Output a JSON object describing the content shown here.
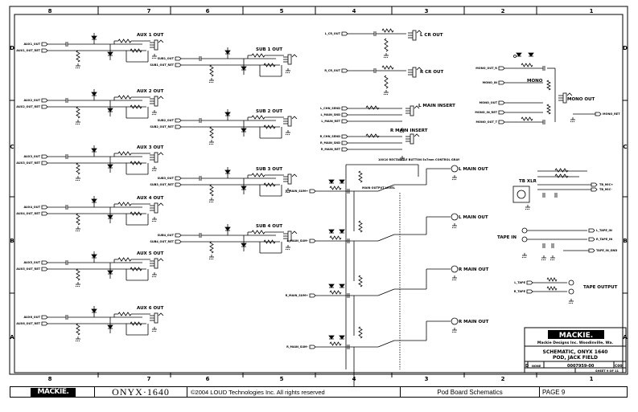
{
  "frame": {
    "columns": [
      "8",
      "7",
      "6",
      "5",
      "4",
      "3",
      "2",
      "1"
    ],
    "rows": [
      "D",
      "C",
      "B",
      "A"
    ]
  },
  "blocks": {
    "aux": [
      {
        "label": "AUX 1 OUT",
        "in": "AUX1_OUT",
        "ret": "AUX1_OUT_RET"
      },
      {
        "label": "AUX 2 OUT",
        "in": "AUX2_OUT",
        "ret": "AUX2_OUT_RET"
      },
      {
        "label": "AUX 3 OUT",
        "in": "AUX3_OUT",
        "ret": "AUX3_OUT_RET"
      },
      {
        "label": "AUX 4 OUT",
        "in": "AUX4_OUT",
        "ret": "AUX4_OUT_RET"
      },
      {
        "label": "AUX 5 OUT",
        "in": "AUX5_OUT",
        "ret": "AUX5_OUT_RET"
      },
      {
        "label": "AUX 6 OUT",
        "in": "AUX6_OUT",
        "ret": "AUX6_OUT_RET"
      }
    ],
    "sub": [
      {
        "label": "SUB 1 OUT",
        "in": "SUB1_OUT",
        "ret": "SUB1_OUT_RET"
      },
      {
        "label": "SUB 2 OUT",
        "in": "SUB2_OUT",
        "ret": "SUB2_OUT_RET"
      },
      {
        "label": "SUB 3 OUT",
        "in": "SUB3_OUT",
        "ret": "SUB3_OUT_RET"
      },
      {
        "label": "SUB 4 OUT",
        "in": "SUB4_OUT",
        "ret": "SUB4_OUT_RET"
      }
    ],
    "cr": [
      {
        "label": "L CR OUT",
        "in": "L_CR_OUT"
      },
      {
        "label": "R CR OUT",
        "in": "R_CR_OUT"
      }
    ],
    "insert": [
      {
        "label": "L MAIN INSERT",
        "nets": [
          "L_CHN_SEND",
          "L_MAIN_SND",
          "L_MAIN_RET"
        ]
      },
      {
        "label": "R MAIN INSERT",
        "nets": [
          "R_CHN_SEND",
          "R_MAIN_SND",
          "R_MAIN_RET"
        ]
      }
    ],
    "main": [
      {
        "label": "L MAIN OUT",
        "in": "L_MAIN_SUM+"
      },
      {
        "label": "L MAIN OUT",
        "in": "L_MAIN_SUM-"
      },
      {
        "label": "R MAIN OUT",
        "in": "R_MAIN_SUM+"
      },
      {
        "label": "R MAIN OUT",
        "in": "R_MAIN_SUM-"
      }
    ],
    "main_level": "MAIN OUTPUT LEVEL",
    "button_note": "10X10 RECTANGLE BUTTON 5x7mm CONTROL GRAY",
    "mono": {
      "title": "MONO",
      "out": "MONO OUT",
      "nets": [
        "MONO_OUT_R",
        "MONO_IN",
        "MONO_OUT",
        "MONO_IN_RET",
        "MONO_OUT_T"
      ],
      "ret": "MONO_RET"
    },
    "tb": {
      "title": "TB XLR",
      "nets": [
        "TB_MIC+",
        "TB_MIC-"
      ]
    },
    "tape_in": {
      "title": "TAPE IN",
      "nets": [
        "L_TAPE_IN",
        "R_TAPE_IN",
        "TAPE_IN_GND"
      ]
    },
    "tape_out": {
      "title": "TAPE OUTPUT",
      "nets": [
        "L_TAPE",
        "R_TAPE"
      ]
    }
  },
  "title_block": {
    "company_logo": "MACKIE.",
    "company": "Mackie Designs Inc.  Woodinville, Wa.",
    "title_line1": "SCHEMATIC, ONYX 1640",
    "title_line2": "POD, JACK FIELD",
    "size": "D",
    "scale": "NONE",
    "dwg_no": "0007959-00",
    "rev": "C00",
    "sheet": "SHEET 9 OF 11"
  },
  "footer": {
    "logo": "MACKIE.",
    "product": "ONYX·1640",
    "copyright": "©2004 LOUD Technologies Inc. All rights reserved",
    "board": "Pod Board Schematics",
    "page": "PAGE 9"
  }
}
